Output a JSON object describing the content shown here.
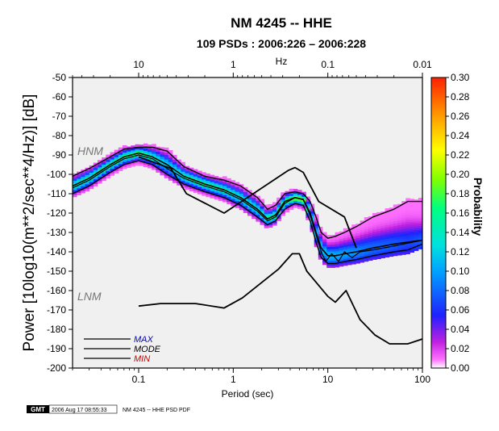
{
  "chart_data": {
    "type": "heatmap",
    "title": "NM 4245 -- HHE",
    "subtitle": "109 PSDs : 2006:226 – 2006:228",
    "xlabel": "Period (sec)",
    "ylabel": "Power [10log10(m**2/sec**4/Hz)] [dB]",
    "top_axis_label": "Hz",
    "colorbar_label": "Probability",
    "x_scale": "log",
    "xlim": [
      0.02,
      100
    ],
    "ylim": [
      -200,
      -50
    ],
    "x_ticks": [
      {
        "value": 0.1,
        "label": "0.1"
      },
      {
        "value": 1,
        "label": "1"
      },
      {
        "value": 10,
        "label": "10"
      },
      {
        "value": 100,
        "label": "100"
      }
    ],
    "top_ticks": [
      {
        "value": 10,
        "label": "10"
      },
      {
        "value": 1,
        "label": "1"
      },
      {
        "value": 0.1,
        "label": "0.1"
      },
      {
        "value": 0.01,
        "label": "0.01"
      }
    ],
    "y_ticks": [
      {
        "value": -50,
        "label": "-50"
      },
      {
        "value": -60,
        "label": "-60"
      },
      {
        "value": -70,
        "label": "-70"
      },
      {
        "value": -80,
        "label": "-80"
      },
      {
        "value": -90,
        "label": "-90"
      },
      {
        "value": -100,
        "label": "-100"
      },
      {
        "value": -110,
        "label": "-110"
      },
      {
        "value": -120,
        "label": "-120"
      },
      {
        "value": -130,
        "label": "-130"
      },
      {
        "value": -140,
        "label": "-140"
      },
      {
        "value": -150,
        "label": "-150"
      },
      {
        "value": -160,
        "label": "-160"
      },
      {
        "value": -170,
        "label": "-170"
      },
      {
        "value": -180,
        "label": "-180"
      },
      {
        "value": -190,
        "label": "-190"
      },
      {
        "value": -200,
        "label": "-200"
      }
    ],
    "colorbar_range": [
      0,
      0.3
    ],
    "colorbar_ticks": [
      {
        "value": 0.3,
        "label": "0.30"
      },
      {
        "value": 0.28,
        "label": "0.28"
      },
      {
        "value": 0.26,
        "label": "0.26"
      },
      {
        "value": 0.24,
        "label": "0.24"
      },
      {
        "value": 0.22,
        "label": "0.22"
      },
      {
        "value": 0.2,
        "label": "0.20"
      },
      {
        "value": 0.18,
        "label": "0.18"
      },
      {
        "value": 0.16,
        "label": "0.16"
      },
      {
        "value": 0.14,
        "label": "0.14"
      },
      {
        "value": 0.12,
        "label": "0.12"
      },
      {
        "value": 0.1,
        "label": "0.10"
      },
      {
        "value": 0.08,
        "label": "0.08"
      },
      {
        "value": 0.06,
        "label": "0.06"
      },
      {
        "value": 0.04,
        "label": "0.04"
      },
      {
        "value": 0.02,
        "label": "0.02"
      },
      {
        "value": 0.0,
        "label": "0.00"
      }
    ],
    "annotations": [
      {
        "text": "HNM",
        "x": 0.03,
        "y": -89
      },
      {
        "text": "LNM",
        "x": 0.03,
        "y": -166
      }
    ],
    "legend": {
      "placement": "bottom-left",
      "entries": [
        {
          "name": "MAX",
          "color": "#0000cc"
        },
        {
          "name": "MODE",
          "color": "#000000"
        },
        {
          "name": "MIN",
          "color": "#cc0000"
        }
      ]
    },
    "hnm": {
      "x": [
        0.1,
        0.22,
        0.32,
        0.8,
        3.8,
        4.5,
        5.5,
        8.0,
        15,
        20
      ],
      "y": [
        -91,
        -97,
        -110,
        -120,
        -98,
        -96.5,
        -99,
        -114,
        -122,
        -138
      ]
    },
    "lnm": {
      "x": [
        0.1,
        0.17,
        0.4,
        0.8,
        1.25,
        3.0,
        4.2,
        5.0,
        6.0,
        10,
        12,
        15.6,
        21.9,
        31.6,
        45,
        70,
        100
      ],
      "y": [
        -168,
        -166.7,
        -166.7,
        -169,
        -163.8,
        -149,
        -141,
        -141,
        -150,
        -163,
        -166,
        -160,
        -175,
        -183,
        -187.5,
        -187.5,
        -185
      ]
    },
    "median": {
      "x": [
        0.02,
        0.03,
        0.05,
        0.07,
        0.1,
        0.14,
        0.2,
        0.3,
        0.5,
        0.8,
        1.2,
        1.8,
        2.3,
        2.8,
        3.5,
        4.5,
        5.5,
        6.5,
        7.5,
        8.5,
        10,
        12,
        15,
        20,
        30,
        50,
        70,
        100
      ],
      "y": [
        -106,
        -102,
        -95,
        -91,
        -89,
        -91,
        -95,
        -101,
        -105,
        -108,
        -112,
        -118,
        -123,
        -121,
        -114,
        -112,
        -113,
        -120,
        -130,
        -138,
        -142,
        -142,
        -141,
        -140,
        -138,
        -136,
        -135,
        -134
      ]
    },
    "max_curve": {
      "x": [
        0.02,
        0.03,
        0.05,
        0.07,
        0.1,
        0.14,
        0.2,
        0.3,
        0.5,
        0.8,
        1.2,
        1.8,
        2.3,
        2.8,
        3.5,
        4.5,
        5.5,
        6.5,
        7.5,
        8.5,
        10,
        12,
        15,
        20,
        30,
        50,
        70,
        100
      ],
      "y": [
        -101,
        -97,
        -91,
        -87,
        -86,
        -86,
        -88,
        -96,
        -101,
        -103,
        -106,
        -112,
        -118,
        -116,
        -110,
        -109,
        -110,
        -114,
        -122,
        -130,
        -133,
        -132,
        -130,
        -127,
        -122,
        -118,
        -114,
        -114
      ]
    },
    "mode_curve": {
      "x": [
        0.02,
        0.03,
        0.05,
        0.07,
        0.1,
        0.14,
        0.2,
        0.3,
        0.5,
        0.8,
        1.2,
        1.8,
        2.3,
        2.8,
        3.5,
        4.5,
        5.5,
        6.5,
        7.5,
        8.5,
        9.5,
        11,
        13,
        15,
        18,
        22,
        30,
        50,
        100
      ],
      "y": [
        -107,
        -103,
        -96,
        -92,
        -90,
        -92,
        -97,
        -102,
        -106,
        -109,
        -113,
        -119,
        -124,
        -122,
        -115,
        -112,
        -113,
        -121,
        -131,
        -140,
        -145,
        -141,
        -145,
        -140,
        -143,
        -140,
        -139,
        -137,
        -134
      ]
    },
    "min_curve": {
      "x": [
        0.02,
        0.03,
        0.05,
        0.07,
        0.1,
        0.14,
        0.2,
        0.3,
        0.5,
        0.8,
        1.2,
        1.8,
        2.3,
        2.8,
        3.5,
        4.5,
        5.5,
        6.5,
        7.5,
        8.5,
        10,
        12,
        15,
        20,
        30,
        50,
        70,
        100
      ],
      "y": [
        -110,
        -106,
        -99,
        -95,
        -93,
        -95,
        -100,
        -105,
        -109,
        -112,
        -116,
        -122,
        -126,
        -124,
        -118,
        -115,
        -116,
        -124,
        -135,
        -143,
        -146,
        -146,
        -145,
        -144,
        -142,
        -140,
        -139,
        -136
      ]
    }
  },
  "footer": {
    "logo_text": "GMT",
    "timestamp": "2006 Aug 17 08:55:33",
    "caption": "NM 4245 -- HHE PSD PDF"
  }
}
